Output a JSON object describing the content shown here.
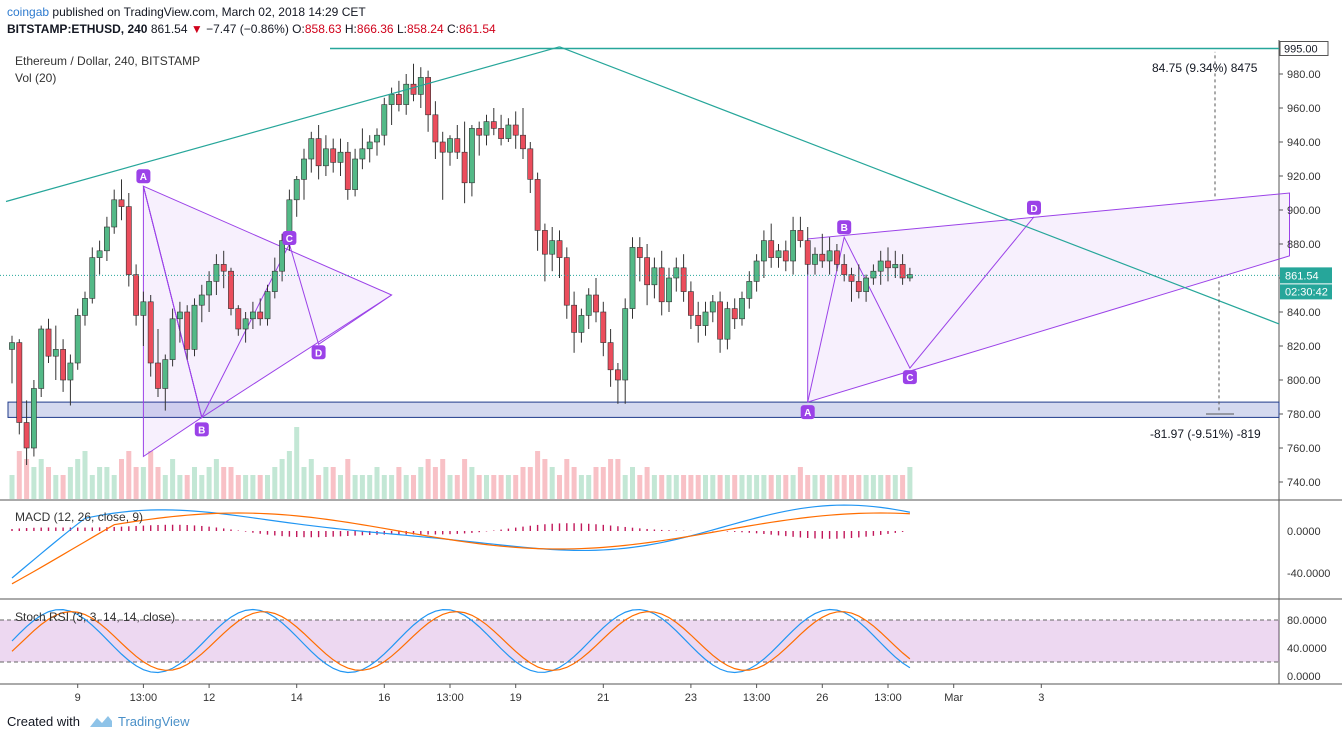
{
  "header": {
    "author": "coingab",
    "published_text": "published on TradingView.com, March 02, 2018 14:29 CET",
    "symbol": "BITSTAMP:ETHUSD, 240",
    "last": "861.54",
    "change": "−7.47 (−0.86%)",
    "o_label": "O:",
    "o_value": "858.63",
    "h_label": "H:",
    "h_value": "866.36",
    "l_label": "L:",
    "l_value": "858.24",
    "c_label": "C:",
    "c_value": "861.54"
  },
  "legend": {
    "title": "Ethereum / Dollar, 240, BITSTAMP",
    "volume": "Vol (20)",
    "macd": "MACD (12, 26, close, 9)",
    "stoch": "Stoch RSI (3, 3, 14, 14, close)"
  },
  "footer": {
    "created_with": "Created with",
    "brand": "TradingView"
  },
  "chart_data": {
    "type": "candlestick",
    "colors": {
      "up": "#53b987",
      "down": "#eb4d5c",
      "pattern": "#9b42e8",
      "trendline": "#26a69a",
      "support_zone": "#1f3a8a"
    },
    "price_axis": {
      "ylim": [
        730,
        1000
      ],
      "ticks": [
        740,
        760,
        780,
        800,
        820,
        840,
        860,
        880,
        900,
        920,
        940,
        960,
        980
      ]
    },
    "x_ticks": [
      {
        "label": "9",
        "i": 9
      },
      {
        "label": "13:00",
        "i": 18
      },
      {
        "label": "12",
        "i": 27
      },
      {
        "label": "14",
        "i": 39
      },
      {
        "label": "16",
        "i": 51
      },
      {
        "label": "13:00",
        "i": 60
      },
      {
        "label": "19",
        "i": 69
      },
      {
        "label": "21",
        "i": 81
      },
      {
        "label": "23",
        "i": 93
      },
      {
        "label": "13:00",
        "i": 102
      },
      {
        "label": "26",
        "i": 111
      },
      {
        "label": "13:00",
        "i": 120
      },
      {
        "label": "Mar",
        "i": 129
      },
      {
        "label": "3",
        "i": 141
      }
    ],
    "candles": [
      [
        818,
        826,
        798,
        822
      ],
      [
        822,
        824,
        768,
        775
      ],
      [
        775,
        788,
        750,
        760
      ],
      [
        760,
        800,
        755,
        795
      ],
      [
        795,
        832,
        790,
        830
      ],
      [
        830,
        836,
        810,
        814
      ],
      [
        814,
        832,
        800,
        818
      ],
      [
        818,
        824,
        793,
        800
      ],
      [
        800,
        815,
        785,
        810
      ],
      [
        810,
        842,
        806,
        838
      ],
      [
        838,
        852,
        832,
        848
      ],
      [
        848,
        878,
        845,
        872
      ],
      [
        872,
        882,
        862,
        876
      ],
      [
        876,
        896,
        870,
        890
      ],
      [
        890,
        912,
        886,
        906
      ],
      [
        906,
        918,
        894,
        902
      ],
      [
        902,
        910,
        855,
        862
      ],
      [
        862,
        868,
        832,
        838
      ],
      [
        838,
        852,
        820,
        846
      ],
      [
        846,
        850,
        802,
        810
      ],
      [
        810,
        830,
        790,
        795
      ],
      [
        795,
        815,
        782,
        812
      ],
      [
        812,
        842,
        808,
        836
      ],
      [
        836,
        846,
        822,
        840
      ],
      [
        840,
        844,
        812,
        818
      ],
      [
        818,
        848,
        814,
        844
      ],
      [
        844,
        856,
        834,
        850
      ],
      [
        850,
        864,
        840,
        858
      ],
      [
        858,
        874,
        850,
        868
      ],
      [
        868,
        876,
        854,
        864
      ],
      [
        864,
        866,
        838,
        842
      ],
      [
        842,
        844,
        826,
        830
      ],
      [
        830,
        840,
        822,
        836
      ],
      [
        836,
        846,
        830,
        840
      ],
      [
        840,
        848,
        832,
        836
      ],
      [
        836,
        856,
        832,
        852
      ],
      [
        852,
        872,
        848,
        864
      ],
      [
        864,
        886,
        858,
        882
      ],
      [
        882,
        912,
        876,
        906
      ],
      [
        906,
        920,
        896,
        918
      ],
      [
        918,
        936,
        906,
        930
      ],
      [
        930,
        946,
        922,
        942
      ],
      [
        942,
        950,
        918,
        926
      ],
      [
        926,
        944,
        920,
        936
      ],
      [
        936,
        942,
        922,
        928
      ],
      [
        928,
        942,
        920,
        934
      ],
      [
        934,
        940,
        906,
        912
      ],
      [
        912,
        936,
        908,
        930
      ],
      [
        930,
        948,
        924,
        936
      ],
      [
        936,
        944,
        928,
        940
      ],
      [
        940,
        948,
        932,
        944
      ],
      [
        944,
        966,
        938,
        962
      ],
      [
        962,
        972,
        950,
        968
      ],
      [
        968,
        976,
        958,
        962
      ],
      [
        962,
        980,
        956,
        974
      ],
      [
        974,
        986,
        964,
        968
      ],
      [
        968,
        984,
        960,
        978
      ],
      [
        978,
        982,
        946,
        956
      ],
      [
        956,
        964,
        930,
        940
      ],
      [
        940,
        946,
        906,
        934
      ],
      [
        934,
        944,
        926,
        942
      ],
      [
        942,
        950,
        930,
        934
      ],
      [
        934,
        952,
        904,
        916
      ],
      [
        916,
        950,
        908,
        948
      ],
      [
        948,
        952,
        932,
        944
      ],
      [
        944,
        956,
        938,
        952
      ],
      [
        952,
        960,
        944,
        948
      ],
      [
        948,
        956,
        938,
        942
      ],
      [
        942,
        954,
        940,
        950
      ],
      [
        950,
        958,
        936,
        944
      ],
      [
        944,
        960,
        930,
        936
      ],
      [
        936,
        940,
        910,
        918
      ],
      [
        918,
        922,
        876,
        888
      ],
      [
        888,
        892,
        858,
        874
      ],
      [
        874,
        890,
        864,
        882
      ],
      [
        882,
        888,
        860,
        872
      ],
      [
        872,
        878,
        836,
        844
      ],
      [
        844,
        852,
        816,
        828
      ],
      [
        828,
        842,
        822,
        838
      ],
      [
        838,
        854,
        830,
        850
      ],
      [
        850,
        860,
        834,
        840
      ],
      [
        840,
        846,
        814,
        822
      ],
      [
        822,
        830,
        796,
        806
      ],
      [
        806,
        810,
        786,
        800
      ],
      [
        800,
        848,
        786,
        842
      ],
      [
        842,
        884,
        836,
        878
      ],
      [
        878,
        884,
        858,
        872
      ],
      [
        872,
        880,
        844,
        856
      ],
      [
        856,
        872,
        848,
        866
      ],
      [
        866,
        876,
        838,
        846
      ],
      [
        846,
        866,
        840,
        860
      ],
      [
        860,
        872,
        852,
        866
      ],
      [
        866,
        874,
        846,
        852
      ],
      [
        852,
        858,
        830,
        838
      ],
      [
        838,
        846,
        822,
        832
      ],
      [
        832,
        846,
        826,
        840
      ],
      [
        840,
        850,
        834,
        846
      ],
      [
        846,
        852,
        816,
        824
      ],
      [
        824,
        846,
        818,
        842
      ],
      [
        842,
        848,
        830,
        836
      ],
      [
        836,
        852,
        832,
        848
      ],
      [
        848,
        864,
        842,
        858
      ],
      [
        858,
        874,
        852,
        870
      ],
      [
        870,
        888,
        860,
        882
      ],
      [
        882,
        892,
        866,
        872
      ],
      [
        872,
        880,
        866,
        876
      ],
      [
        876,
        882,
        864,
        870
      ],
      [
        870,
        896,
        862,
        888
      ],
      [
        888,
        896,
        878,
        882
      ],
      [
        882,
        890,
        862,
        868
      ],
      [
        868,
        878,
        862,
        874
      ],
      [
        874,
        886,
        866,
        870
      ],
      [
        870,
        884,
        862,
        876
      ],
      [
        876,
        880,
        864,
        868
      ],
      [
        868,
        874,
        858,
        862
      ],
      [
        862,
        866,
        846,
        858
      ],
      [
        858,
        868,
        848,
        852
      ],
      [
        852,
        862,
        846,
        860
      ],
      [
        860,
        868,
        856,
        864
      ],
      [
        864,
        876,
        856,
        870
      ],
      [
        870,
        878,
        858,
        866
      ],
      [
        866,
        876,
        860,
        868
      ],
      [
        868,
        874,
        856,
        860
      ],
      [
        860,
        866,
        858,
        862
      ]
    ],
    "volume": [
      3,
      6,
      5,
      4,
      5,
      4,
      3,
      3,
      4,
      5,
      6,
      3,
      4,
      4,
      3,
      5,
      6,
      4,
      4,
      6,
      4,
      3,
      5,
      3,
      3,
      4,
      3,
      4,
      5,
      4,
      4,
      3,
      3,
      3,
      3,
      3,
      4,
      5,
      6,
      9,
      4,
      5,
      3,
      4,
      4,
      3,
      5,
      3,
      3,
      3,
      4,
      3,
      3,
      4,
      3,
      3,
      4,
      5,
      4,
      5,
      3,
      3,
      5,
      4,
      3,
      3,
      3,
      3,
      3,
      3,
      4,
      4,
      6,
      5,
      4,
      3,
      5,
      4,
      3,
      3,
      4,
      4,
      5,
      5,
      3,
      4,
      3,
      4,
      3,
      3,
      3,
      3,
      3,
      3,
      3,
      3,
      3,
      3,
      3,
      3,
      3,
      3,
      3,
      3,
      3,
      3,
      3,
      3,
      4,
      3,
      3,
      3,
      3,
      3,
      3,
      3,
      3,
      3,
      3,
      3,
      3,
      3,
      3,
      4,
      3,
      2
    ],
    "levels": {
      "top": 995.0,
      "upper_target_label": "84.75 (9.34%) 8475",
      "lower_target_label": "-81.97 (-9.51%) -819"
    },
    "price_labels": {
      "last": "861.54",
      "timer": "02:30:42",
      "top": "995.00"
    },
    "macd_axis": {
      "ticks": [
        "0.0000",
        "-40.0000"
      ]
    },
    "stoch_axis": {
      "ticks": [
        "80.0000",
        "40.0000",
        "0.0000"
      ]
    },
    "pattern_letters": [
      "A",
      "B",
      "C",
      "D",
      "A",
      "B",
      "C",
      "D"
    ]
  }
}
